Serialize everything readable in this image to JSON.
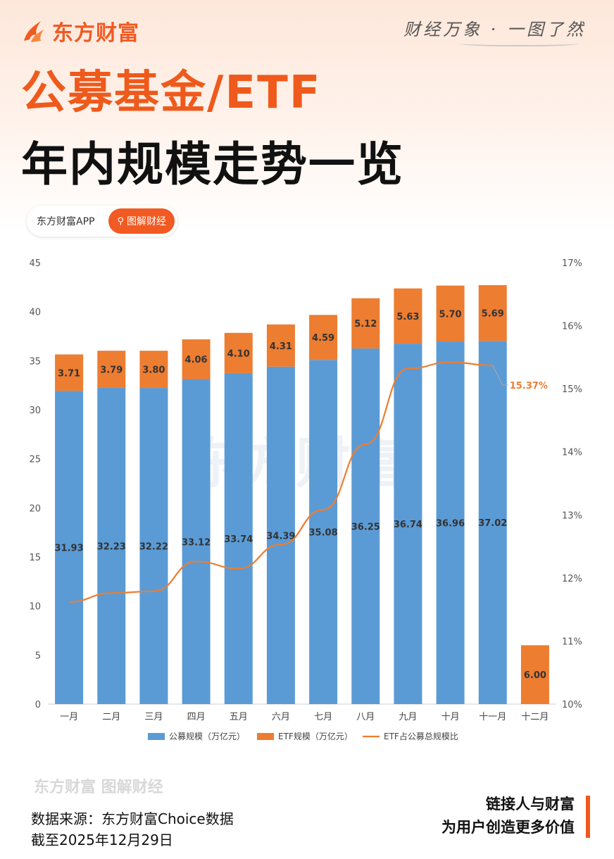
{
  "header": {
    "brand": "东方财富",
    "slogan": "财经万象 · 一图了然",
    "title_line1": "公募基金/ETF",
    "title_line2": "年内规模走势一览",
    "app_label": "东方财富APP",
    "tag_label": "图解财经"
  },
  "colors": {
    "accent": "#ef5a1c",
    "bar_public": "#5b9bd5",
    "bar_etf": "#ed7d31",
    "line": "#ed7d31"
  },
  "chart_data": {
    "type": "bar",
    "stacked": true,
    "categories": [
      "一月",
      "二月",
      "三月",
      "四月",
      "五月",
      "六月",
      "七月",
      "八月",
      "九月",
      "十月",
      "十一月",
      "十二月"
    ],
    "series": [
      {
        "name": "公募规模（万亿元）",
        "axis": "left",
        "values": [
          31.93,
          32.23,
          32.22,
          33.12,
          33.74,
          34.39,
          35.08,
          36.25,
          36.74,
          36.96,
          37.02,
          null
        ],
        "labels": [
          "31.93",
          "32.23",
          "32.22",
          "33.12",
          "33.74",
          "34.39",
          "35.08",
          "36.25",
          "36.74",
          "36.96",
          "37.02",
          ""
        ]
      },
      {
        "name": "ETF规模（万亿元）",
        "axis": "left",
        "values": [
          3.71,
          3.79,
          3.8,
          4.06,
          4.1,
          4.31,
          4.59,
          5.12,
          5.63,
          5.7,
          5.69,
          6.0
        ],
        "labels": [
          "3.71",
          "3.79",
          "3.80",
          "4.06",
          "4.10",
          "4.31",
          "4.59",
          "5.12",
          "5.63",
          "5.70",
          "5.69",
          "6.00"
        ]
      },
      {
        "name": "ETF占公募总规模比",
        "type": "line",
        "axis": "right",
        "values": [
          11.62,
          11.76,
          11.79,
          12.26,
          12.15,
          12.53,
          13.08,
          14.12,
          15.32,
          15.42,
          15.37,
          null
        ],
        "end_label": "15.37%"
      }
    ],
    "ylim": [
      0,
      45
    ],
    "yticks": [
      "0",
      "5",
      "10",
      "15",
      "20",
      "25",
      "30",
      "35",
      "40",
      "45"
    ],
    "y2lim": [
      10,
      17
    ],
    "y2ticks": [
      "10%",
      "11%",
      "12%",
      "13%",
      "14%",
      "15%",
      "16%",
      "17%"
    ],
    "legend": "bottom"
  },
  "watermark": "东方财富",
  "footer": {
    "logo_text": "东方财富 图解财经",
    "source": "数据来源：东方财富Choice数据",
    "date": "截至2025年12月29日",
    "cta_line1": "链接人与财富",
    "cta_line2": "为用户创造更多价值"
  }
}
